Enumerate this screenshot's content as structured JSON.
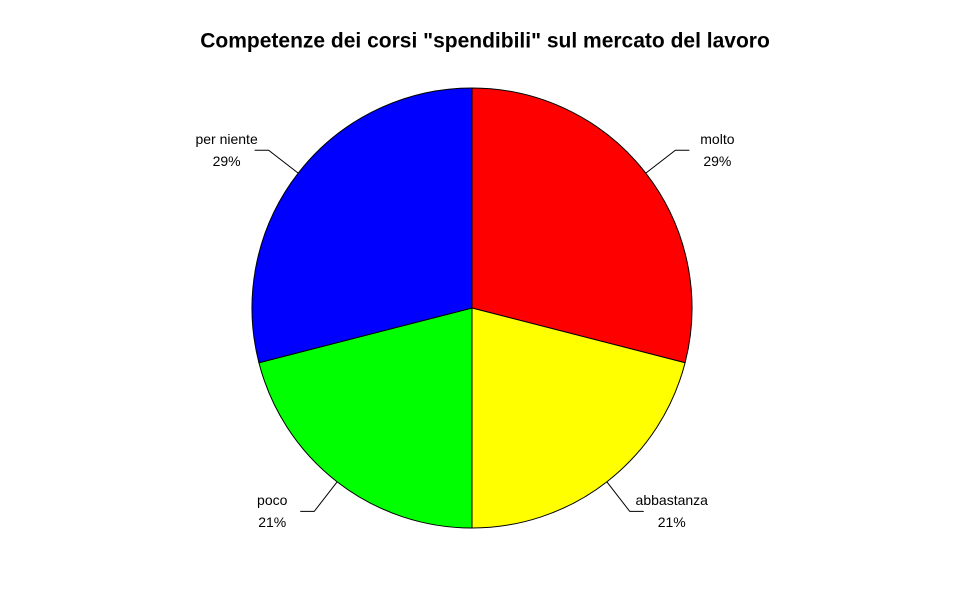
{
  "chart_data": {
    "type": "pie",
    "title": "Competenze dei corsi \"spendibili\" sul mercato del lavoro",
    "categories": [
      "molto",
      "abbastanza",
      "poco",
      "per niente"
    ],
    "values": [
      29,
      21,
      21,
      29
    ],
    "value_labels": [
      "29%",
      "21%",
      "21%",
      "29%"
    ],
    "colors": [
      "#ff0000",
      "#ffff00",
      "#00ff00",
      "#0000ff"
    ],
    "start_angle": 90,
    "direction": "clockwise"
  }
}
